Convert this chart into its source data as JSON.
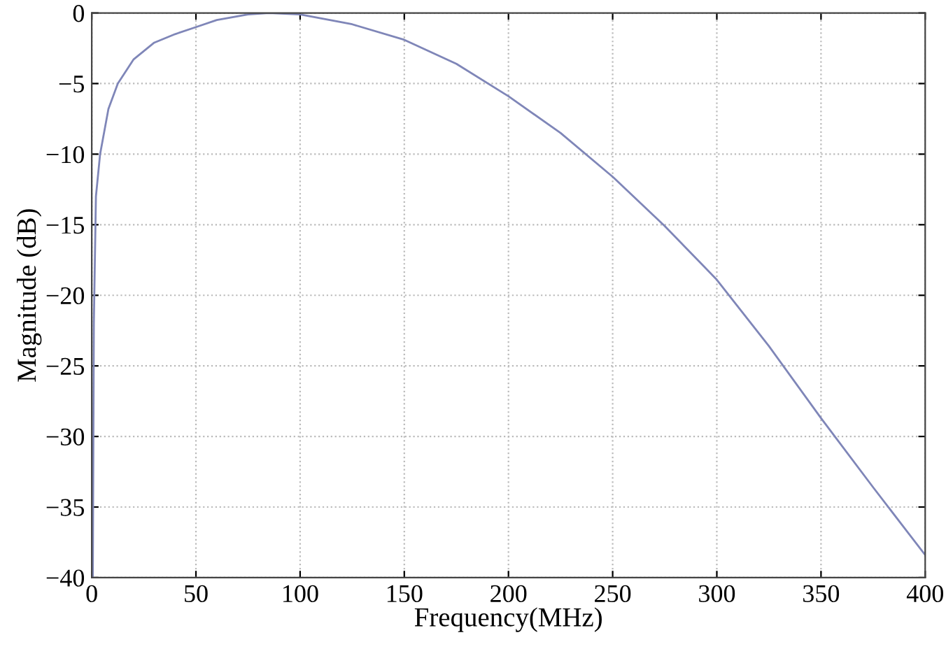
{
  "chart_data": {
    "type": "line",
    "xlabel": "Frequency(MHz)",
    "ylabel": "Magnitude (dB)",
    "x": [
      0.5,
      1,
      2,
      4,
      8,
      12.5,
      20,
      30,
      40,
      50,
      60,
      75,
      85,
      100,
      125,
      150,
      175,
      200,
      225,
      250,
      275,
      300,
      325,
      350,
      375,
      400
    ],
    "series": [
      {
        "color": "#7f86b8",
        "values": [
          -40,
          -22,
          -13,
          -10,
          -6.8,
          -5,
          -3.3,
          -2.1,
          -1.5,
          -1.0,
          -0.5,
          -0.1,
          0,
          -0.1,
          -0.8,
          -1.9,
          -3.6,
          -5.9,
          -8.5,
          -11.6,
          -15.1,
          -18.9,
          -23.6,
          -28.7,
          -33.6,
          -38.4
        ]
      }
    ],
    "xlim": [
      0,
      400
    ],
    "xticks": [
      0,
      50,
      100,
      150,
      200,
      250,
      300,
      350,
      400
    ],
    "ylim": [
      -40,
      0
    ],
    "yticks": [
      {
        "value": -40,
        "label": "−40"
      },
      {
        "value": -35,
        "label": "−35"
      },
      {
        "value": -30,
        "label": "−30"
      },
      {
        "value": -25,
        "label": "−25"
      },
      {
        "value": -20,
        "label": "−20"
      },
      {
        "value": -15,
        "label": "−15"
      },
      {
        "value": -10,
        "label": "−10"
      },
      {
        "value": -5,
        "label": "−5"
      },
      0
    ],
    "grid": true,
    "line_style": "solid",
    "marker": "none"
  }
}
